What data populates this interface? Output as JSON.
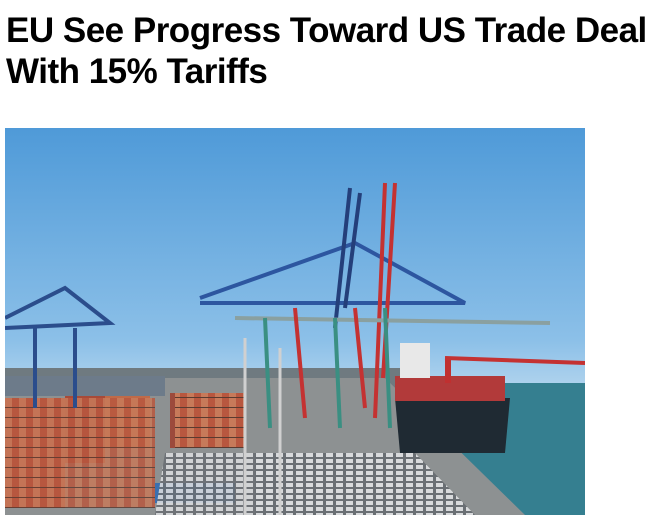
{
  "article": {
    "headline": "EU See Progress Toward US Trade Deal With 15% Tariffs",
    "image": {
      "subject": "container-port-photo"
    }
  }
}
